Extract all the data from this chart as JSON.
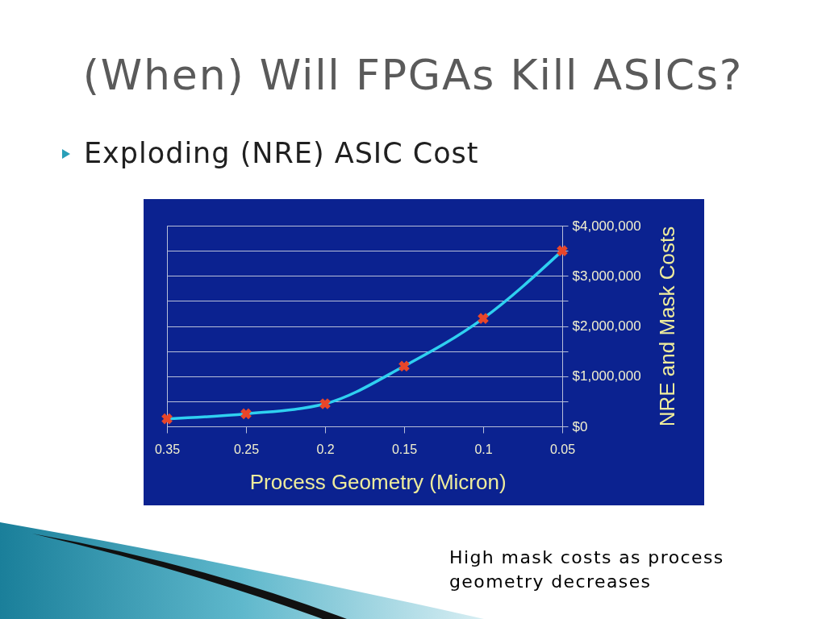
{
  "chart_data": {
    "type": "line",
    "title": "(When) Will FPGAs Kill ASICs?",
    "subtitle": "Exploding (NRE) ASIC Cost",
    "xlabel": "Process Geometry (Micron)",
    "ylabel": "NRE and Mask Costs",
    "annotations": [
      "High mask costs as process geometry decreases"
    ],
    "categories": [
      "0.35",
      "0.25",
      "0.2",
      "0.15",
      "0.1",
      "0.05"
    ],
    "series": [
      {
        "color": "#2fd0f0",
        "values": [
          150000,
          250000,
          450000,
          1200000,
          2150000,
          3500000
        ]
      },
      {
        "type": "scatter",
        "marker": "cross",
        "color": "#e8462a",
        "values": [
          150000,
          250000,
          450000,
          1200000,
          2150000,
          3500000
        ]
      }
    ],
    "ylim": [
      0,
      4000000
    ],
    "yticks": [
      {
        "value": 0,
        "label": "$0"
      },
      {
        "value": 500000,
        "label": null
      },
      {
        "value": 1000000,
        "label": "$1,000,000"
      },
      {
        "value": 1500000,
        "label": null
      },
      {
        "value": 2000000,
        "label": "$2,000,000"
      },
      {
        "value": 2500000,
        "label": null
      },
      {
        "value": 3000000,
        "label": "$3,000,000"
      },
      {
        "value": 3500000,
        "label": null
      },
      {
        "value": 4000000,
        "label": "$4,000,000"
      }
    ],
    "grid": "y",
    "line_style": "solid"
  }
}
